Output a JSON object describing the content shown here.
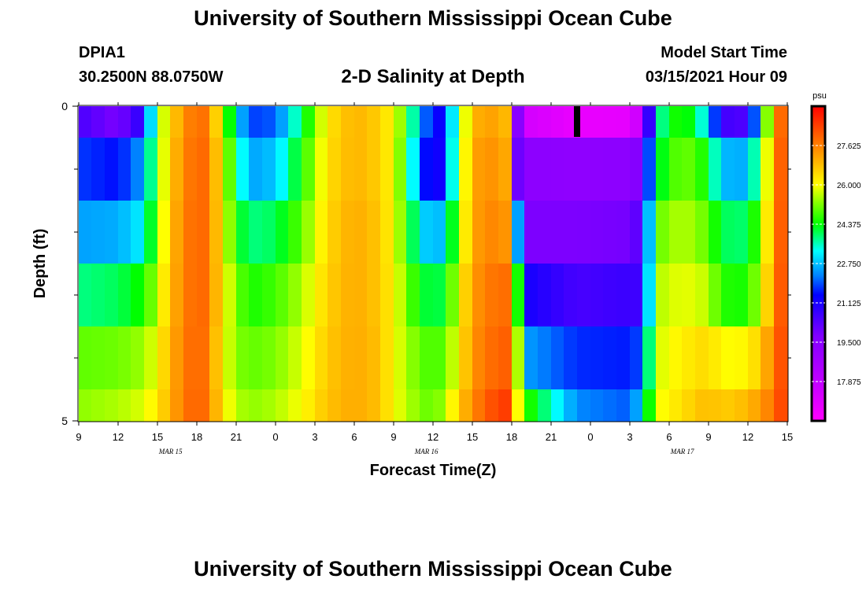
{
  "header": {
    "title": "University of Southern Mississippi Ocean Cube",
    "station_id": "DPIA1",
    "coords": "30.2500N 88.0750W",
    "plot_title": "2-D Salinity at Depth",
    "model_start_label": "Model Start Time",
    "model_start_value": "03/15/2021 Hour 09"
  },
  "footer": {
    "title": "University of Southern Mississippi Ocean Cube"
  },
  "chart_data": {
    "type": "heatmap",
    "title": "2-D Salinity at Depth",
    "xlabel": "Forecast Time(Z)",
    "ylabel": "Depth (ft)",
    "xlim": [
      0,
      54
    ],
    "ylim": [
      0,
      5
    ],
    "x_hours": [
      0,
      3,
      6,
      9,
      12,
      15,
      18,
      21,
      24,
      27,
      30,
      33,
      36,
      39,
      42,
      45,
      48,
      51,
      54
    ],
    "x_tick_labels": [
      "9",
      "12",
      "15",
      "18",
      "21",
      "0",
      "3",
      "6",
      "9",
      "12",
      "15",
      "18",
      "21",
      "0",
      "3",
      "6",
      "9",
      "12",
      "15"
    ],
    "y_tick_labels": [
      {
        "value": 0,
        "label": "0"
      },
      {
        "value": 5,
        "label": "5"
      }
    ],
    "y_minor_ticks": [
      1,
      2,
      3,
      4
    ],
    "date_labels": [
      {
        "x": 7,
        "label": "MAR 15"
      },
      {
        "x": 26.5,
        "label": "MAR 16"
      },
      {
        "x": 46,
        "label": "MAR 17"
      }
    ],
    "colorbar": {
      "unit": "psu",
      "range": [
        16.25,
        29.25
      ],
      "tick_labels": [
        "27.625",
        "26.000",
        "24.375",
        "22.750",
        "21.125",
        "19.500",
        "17.875"
      ],
      "tick_values": [
        27.625,
        26.0,
        24.375,
        22.75,
        21.125,
        19.5,
        17.875
      ]
    },
    "layer_edges": [
      0,
      0.5,
      1.5,
      2.5,
      3.5,
      4.5,
      5
    ],
    "salinity_keyframes": [
      {
        "h": 0,
        "v": [
          20.5,
          21.8,
          22.5,
          23.8,
          25.0,
          25.3
        ]
      },
      {
        "h": 3,
        "v": [
          19.8,
          21.5,
          22.6,
          24.0,
          25.1,
          25.5
        ]
      },
      {
        "h": 5,
        "v": [
          21.0,
          22.5,
          23.2,
          24.5,
          25.4,
          25.8
        ]
      },
      {
        "h": 6,
        "v": [
          25.0,
          25.0,
          25.2,
          25.6,
          26.0,
          26.3
        ]
      },
      {
        "h": 7,
        "v": [
          26.5,
          26.7,
          26.8,
          26.9,
          27.0,
          27.0
        ]
      },
      {
        "h": 8,
        "v": [
          27.3,
          27.4,
          27.5,
          27.5,
          27.6,
          27.7
        ]
      },
      {
        "h": 9,
        "v": [
          28.0,
          28.1,
          28.1,
          28.1,
          28.1,
          28.1
        ]
      },
      {
        "h": 10,
        "v": [
          27.6,
          27.7,
          27.7,
          27.7,
          27.6,
          27.7
        ]
      },
      {
        "h": 11,
        "v": [
          25.6,
          26.0,
          26.1,
          26.2,
          26.0,
          26.2
        ]
      },
      {
        "h": 12,
        "v": [
          23.2,
          24.0,
          24.5,
          25.2,
          25.3,
          25.6
        ]
      },
      {
        "h": 13,
        "v": [
          21.8,
          22.5,
          23.8,
          24.5,
          25.0,
          25.3
        ]
      },
      {
        "h": 15,
        "v": [
          22.0,
          22.8,
          24.0,
          24.8,
          25.2,
          25.5
        ]
      },
      {
        "h": 17,
        "v": [
          24.0,
          24.5,
          25.0,
          25.5,
          25.8,
          26.0
        ]
      },
      {
        "h": 19,
        "v": [
          26.3,
          26.4,
          26.5,
          26.6,
          26.7,
          26.8
        ]
      },
      {
        "h": 21,
        "v": [
          27.0,
          27.0,
          27.1,
          27.1,
          27.1,
          27.1
        ]
      },
      {
        "h": 23,
        "v": [
          26.6,
          26.6,
          26.7,
          26.7,
          26.8,
          26.8
        ]
      },
      {
        "h": 24,
        "v": [
          26.0,
          26.0,
          26.0,
          26.1,
          26.0,
          26.0
        ]
      },
      {
        "h": 25,
        "v": [
          24.8,
          24.5,
          24.8,
          25.2,
          25.5,
          25.6
        ]
      },
      {
        "h": 26,
        "v": [
          22.5,
          22.0,
          23.2,
          24.3,
          25.0,
          25.2
        ]
      },
      {
        "h": 27,
        "v": [
          21.5,
          21.0,
          22.5,
          24.0,
          24.8,
          25.0
        ]
      },
      {
        "h": 28,
        "v": [
          21.2,
          21.5,
          23.0,
          24.2,
          25.0,
          25.5
        ]
      },
      {
        "h": 29,
        "v": [
          25.0,
          25.2,
          25.5,
          26.0,
          26.2,
          26.7
        ]
      },
      {
        "h": 30,
        "v": [
          26.8,
          27.0,
          27.0,
          27.2,
          27.3,
          27.4
        ]
      },
      {
        "h": 31,
        "v": [
          27.3,
          27.5,
          27.6,
          27.7,
          27.8,
          28.1
        ]
      },
      {
        "h": 33,
        "v": [
          26.8,
          27.0,
          27.3,
          27.9,
          28.1,
          28.6
        ]
      },
      {
        "h": 33.5,
        "v": [
          19.5,
          20.0,
          22.5,
          24.5,
          25.5,
          26.0
        ]
      },
      {
        "h": 34,
        "v": [
          17.4,
          19.4,
          19.8,
          21.2,
          22.5,
          24.8
        ]
      },
      {
        "h": 38,
        "v": [
          16.8,
          19.3,
          19.8,
          20.5,
          21.7,
          22.3
        ]
      },
      {
        "h": 42,
        "v": [
          16.9,
          19.4,
          19.9,
          20.7,
          21.6,
          22.0
        ]
      },
      {
        "h": 43,
        "v": [
          18.0,
          19.8,
          20.5,
          20.6,
          22.0,
          23.0
        ]
      },
      {
        "h": 44,
        "v": [
          23.5,
          24.0,
          25.0,
          25.5,
          25.7,
          25.9
        ]
      },
      {
        "h": 46,
        "v": [
          24.8,
          25.2,
          25.6,
          25.9,
          26.2,
          26.4
        ]
      },
      {
        "h": 48,
        "v": [
          23.0,
          24.4,
          25.0,
          25.6,
          26.5,
          26.9
        ]
      },
      {
        "h": 49,
        "v": [
          20.6,
          22.7,
          24.0,
          24.6,
          26.0,
          26.6
        ]
      },
      {
        "h": 51,
        "v": [
          20.4,
          22.6,
          23.9,
          24.5,
          26.1,
          26.9
        ]
      },
      {
        "h": 52,
        "v": [
          23.5,
          24.6,
          25.2,
          25.7,
          26.7,
          27.3
        ]
      },
      {
        "h": 53,
        "v": [
          27.0,
          27.2,
          27.3,
          27.4,
          27.6,
          27.8
        ]
      },
      {
        "h": 54,
        "v": [
          28.8,
          28.8,
          28.8,
          28.8,
          28.8,
          28.8
        ]
      }
    ]
  }
}
